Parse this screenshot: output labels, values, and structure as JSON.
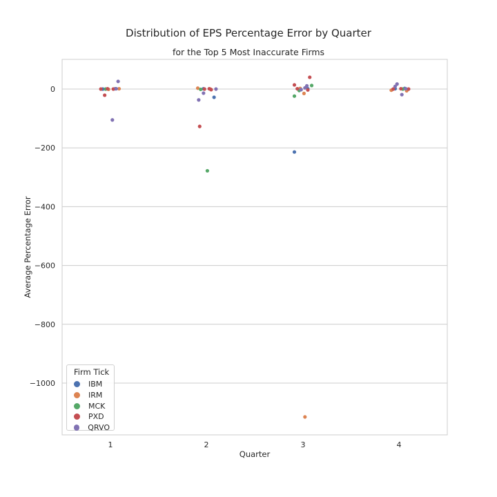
{
  "chart_data": {
    "type": "scatter",
    "title": "Distribution of EPS Percentage Error by Quarter",
    "subtitle": "for the Top 5 Most Inaccurate Firms",
    "xlabel": "Quarter",
    "ylabel": "Average Percentage Error",
    "categories": [
      "1",
      "2",
      "3",
      "4"
    ],
    "ylim": [
      -1180,
      100
    ],
    "yticks": [
      0,
      -200,
      -400,
      -600,
      -800,
      -1000
    ],
    "grid": "horizontal",
    "legend": {
      "title": "Firm Tick",
      "placement": "lower-left"
    },
    "series": [
      {
        "name": "IBM",
        "color": "#4c72b0",
        "points": [
          {
            "x": "1",
            "j": -0.08,
            "y": 0
          },
          {
            "x": "1",
            "j": 0.05,
            "y": 1
          },
          {
            "x": "2",
            "j": 0.08,
            "y": -28
          },
          {
            "x": "2",
            "j": -0.03,
            "y": 1
          },
          {
            "x": "3",
            "j": -0.09,
            "y": -214
          },
          {
            "x": "3",
            "j": 0.05,
            "y": 1
          },
          {
            "x": "4",
            "j": 0.06,
            "y": 2
          },
          {
            "x": "4",
            "j": -0.04,
            "y": 1
          }
        ]
      },
      {
        "name": "IRM",
        "color": "#dd8452",
        "points": [
          {
            "x": "1",
            "j": 0.09,
            "y": 1
          },
          {
            "x": "1",
            "j": -0.02,
            "y": -1
          },
          {
            "x": "2",
            "j": -0.09,
            "y": 3
          },
          {
            "x": "2",
            "j": 0.04,
            "y": 0
          },
          {
            "x": "3",
            "j": 0.02,
            "y": -1115
          },
          {
            "x": "3",
            "j": 0.01,
            "y": -15
          },
          {
            "x": "3",
            "j": -0.03,
            "y": 2
          },
          {
            "x": "4",
            "j": -0.08,
            "y": -4
          },
          {
            "x": "4",
            "j": 0.08,
            "y": -6
          }
        ]
      },
      {
        "name": "MCK",
        "color": "#55a868",
        "points": [
          {
            "x": "1",
            "j": -0.05,
            "y": 0
          },
          {
            "x": "2",
            "j": 0.01,
            "y": -278
          },
          {
            "x": "2",
            "j": -0.06,
            "y": -1
          },
          {
            "x": "3",
            "j": -0.09,
            "y": -24
          },
          {
            "x": "3",
            "j": 0.09,
            "y": 12
          },
          {
            "x": "3",
            "j": -0.04,
            "y": -5
          },
          {
            "x": "4",
            "j": 0.04,
            "y": 0
          }
        ]
      },
      {
        "name": "PXD",
        "color": "#c44e52",
        "points": [
          {
            "x": "1",
            "j": -0.06,
            "y": -21
          },
          {
            "x": "1",
            "j": -0.1,
            "y": 0
          },
          {
            "x": "1",
            "j": 0.03,
            "y": 0
          },
          {
            "x": "1",
            "j": -0.03,
            "y": 1
          },
          {
            "x": "2",
            "j": -0.07,
            "y": -127
          },
          {
            "x": "2",
            "j": -0.02,
            "y": 0
          },
          {
            "x": "2",
            "j": 0.03,
            "y": 1
          },
          {
            "x": "2",
            "j": 0.05,
            "y": -2
          },
          {
            "x": "3",
            "j": -0.09,
            "y": 14
          },
          {
            "x": "3",
            "j": 0.07,
            "y": 40
          },
          {
            "x": "3",
            "j": -0.06,
            "y": 1
          },
          {
            "x": "3",
            "j": 0.05,
            "y": -3
          },
          {
            "x": "4",
            "j": -0.06,
            "y": 0
          },
          {
            "x": "4",
            "j": 0.02,
            "y": 1
          },
          {
            "x": "4",
            "j": 0.1,
            "y": 0
          }
        ]
      },
      {
        "name": "QRVO",
        "color": "#8172b3",
        "points": [
          {
            "x": "1",
            "j": 0.02,
            "y": -105
          },
          {
            "x": "1",
            "j": 0.08,
            "y": 26
          },
          {
            "x": "1",
            "j": 0.06,
            "y": 1
          },
          {
            "x": "2",
            "j": -0.08,
            "y": -37
          },
          {
            "x": "2",
            "j": -0.03,
            "y": -14
          },
          {
            "x": "2",
            "j": 0.1,
            "y": 0
          },
          {
            "x": "3",
            "j": 0.04,
            "y": 11
          },
          {
            "x": "3",
            "j": 0.02,
            "y": 4
          },
          {
            "x": "3",
            "j": -0.02,
            "y": -2
          },
          {
            "x": "4",
            "j": -0.02,
            "y": 17
          },
          {
            "x": "4",
            "j": -0.04,
            "y": 9
          },
          {
            "x": "4",
            "j": 0.03,
            "y": -19
          },
          {
            "x": "4",
            "j": 0.07,
            "y": 1
          }
        ]
      }
    ]
  }
}
